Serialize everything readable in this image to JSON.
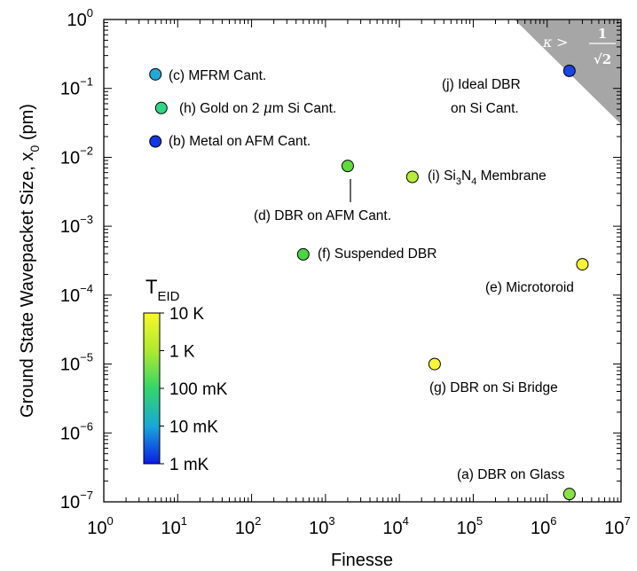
{
  "chart_data": {
    "type": "scatter",
    "xlabel": "Finesse",
    "ylabel_main": "Ground State Wavepacket Size, x",
    "ylabel_sub": "0",
    "ylabel_unit": " (pm)",
    "x_scale": "log",
    "y_scale": "log",
    "xlim": [
      1,
      10000000
    ],
    "ylim": [
      1e-07,
      1
    ],
    "x_ticks": [
      {
        "base": "10",
        "exp": "0"
      },
      {
        "base": "10",
        "exp": "1"
      },
      {
        "base": "10",
        "exp": "2"
      },
      {
        "base": "10",
        "exp": "3"
      },
      {
        "base": "10",
        "exp": "4"
      },
      {
        "base": "10",
        "exp": "5"
      },
      {
        "base": "10",
        "exp": "6"
      },
      {
        "base": "10",
        "exp": "7"
      }
    ],
    "y_ticks": [
      {
        "base": "10",
        "exp": "−7"
      },
      {
        "base": "10",
        "exp": "−6"
      },
      {
        "base": "10",
        "exp": "−5"
      },
      {
        "base": "10",
        "exp": "−4"
      },
      {
        "base": "10",
        "exp": "−3"
      },
      {
        "base": "10",
        "exp": "−2"
      },
      {
        "base": "10",
        "exp": "−1"
      },
      {
        "base": "10",
        "exp": "0"
      }
    ],
    "grid": false,
    "points": [
      {
        "x": 5,
        "y": 0.16,
        "color": "#22a8d6",
        "label": "(c) MFRM Cant."
      },
      {
        "x": 6,
        "y": 0.052,
        "color": "#2ed685",
        "label": "(h) Gold on 2 μm Si Cant."
      },
      {
        "x": 5,
        "y": 0.017,
        "color": "#1238e0",
        "label": "(b) Metal on AFM Cant."
      },
      {
        "x": 2000,
        "y": 0.0075,
        "color": "#5fdc3c",
        "label_lines": [
          "(d) DBR on AFM Cant."
        ]
      },
      {
        "x": 15000,
        "y": 0.0052,
        "color": "#b8ec3a",
        "label": "(i) Si3N4 Membrane"
      },
      {
        "x": 500,
        "y": 0.00039,
        "color": "#4cd444",
        "label": "(f) Suspended DBR"
      },
      {
        "x": 3000000,
        "y": 0.00028,
        "color": "#f6f53a",
        "label": "(e) Microtoroid"
      },
      {
        "x": 30000,
        "y": 1e-05,
        "color": "#f6f53a",
        "label": "(g) DBR on Si Bridge"
      },
      {
        "x": 2000000,
        "y": 1.3e-07,
        "color": "#8ae046",
        "label": "(a) DBR on Glass"
      },
      {
        "x": 2000000,
        "y": 0.18,
        "color": "#1a44e8",
        "label_lines": [
          "(j) Ideal DBR",
          "on Si Cant."
        ]
      }
    ],
    "label_texts": {
      "c": "(c) MFRM Cant.",
      "h1": "(h) Gold on 2 ",
      "h_mu": "μ",
      "h2": "m Si Cant.",
      "b": "(b) Metal on AFM Cant.",
      "d": "(d) DBR on AFM Cant.",
      "i1": "(i) Si",
      "i_sub1": "3",
      "i2": "N",
      "i_sub2": "4",
      "i3": " Membrane",
      "f": "(f) Suspended DBR",
      "e": "(e) Microtoroid",
      "g": "(g) DBR on Si Bridge",
      "a": "(a) DBR on Glass",
      "j1": "(j) Ideal DBR",
      "j2": "on Si Cant."
    },
    "region_annotation": {
      "kappa": "κ",
      "gt": ">",
      "num": "1",
      "den": "√2"
    },
    "colorbar": {
      "title_main": "T",
      "title_sub": "EID",
      "labels": [
        "10 K",
        "1 K",
        "100 mK",
        "10 mK",
        "1 mK"
      ],
      "colors": [
        "#f8f82a",
        "#aeea30",
        "#33d66a",
        "#18a8d8",
        "#0a1ee6"
      ]
    }
  }
}
